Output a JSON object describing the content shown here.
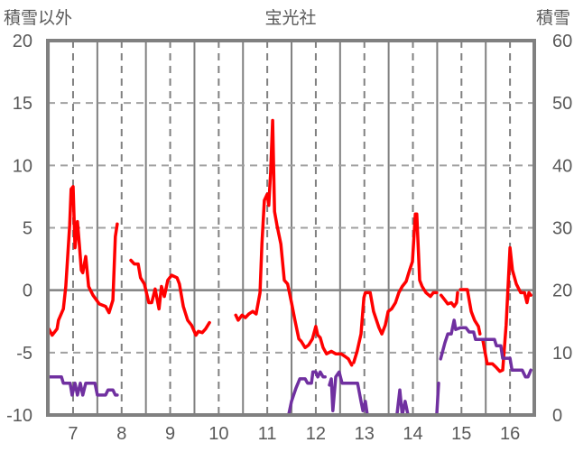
{
  "chart_data": {
    "type": "line",
    "title": "宝光社",
    "ylabel": "積雪以外",
    "y2label": "積雪",
    "xlim": [
      6.48,
      16.5
    ],
    "ylim": [
      -10,
      20
    ],
    "y2lim": [
      0,
      60
    ],
    "xticks": [
      7,
      8,
      9,
      10,
      11,
      12,
      13,
      14,
      15,
      16
    ],
    "yticks": [
      -10,
      -5,
      0,
      5,
      10,
      15,
      20
    ],
    "y2ticks": [
      0,
      10,
      20,
      30,
      40,
      50,
      60
    ],
    "grid": true,
    "legend": "none",
    "colors": {
      "grid": "#808080",
      "text": "#595959"
    },
    "series": [
      {
        "name": "積雪以外",
        "axis": "left",
        "color": "#ff0000",
        "segments": [
          [
            [
              6.5,
              -3.1
            ],
            [
              6.57,
              -3.6
            ],
            [
              6.67,
              -3.1
            ],
            [
              6.7,
              -2.4
            ],
            [
              6.8,
              -1.5
            ],
            [
              6.85,
              0.3
            ],
            [
              6.93,
              5.2
            ],
            [
              6.96,
              8.1
            ],
            [
              7.0,
              8.3
            ],
            [
              7.04,
              3.4
            ],
            [
              7.09,
              5.5
            ],
            [
              7.13,
              3.6
            ],
            [
              7.17,
              1.6
            ],
            [
              7.2,
              1.4
            ],
            [
              7.26,
              2.7
            ],
            [
              7.32,
              0.3
            ],
            [
              7.41,
              -0.4
            ],
            [
              7.54,
              -1.1
            ],
            [
              7.67,
              -1.3
            ],
            [
              7.74,
              -1.8
            ],
            [
              7.82,
              -0.8
            ],
            [
              7.87,
              4.3
            ],
            [
              7.91,
              5.3
            ]
          ],
          [
            [
              8.19,
              2.4
            ],
            [
              8.26,
              2.1
            ],
            [
              8.34,
              2.1
            ],
            [
              8.39,
              1.0
            ],
            [
              8.47,
              0.5
            ],
            [
              8.56,
              -1.0
            ],
            [
              8.62,
              -1.0
            ],
            [
              8.69,
              0.1
            ],
            [
              8.77,
              -1.5
            ],
            [
              8.82,
              0.3
            ],
            [
              8.88,
              -0.5
            ],
            [
              8.95,
              0.8
            ],
            [
              9.03,
              1.2
            ],
            [
              9.14,
              1.0
            ],
            [
              9.19,
              0.5
            ],
            [
              9.27,
              -1.3
            ],
            [
              9.36,
              -2.4
            ],
            [
              9.44,
              -2.8
            ],
            [
              9.53,
              -3.6
            ],
            [
              9.58,
              -3.3
            ],
            [
              9.66,
              -3.4
            ],
            [
              9.73,
              -3.1
            ],
            [
              9.81,
              -2.6
            ]
          ],
          [
            [
              10.35,
              -2.0
            ],
            [
              10.4,
              -2.4
            ],
            [
              10.48,
              -2.0
            ],
            [
              10.55,
              -2.2
            ],
            [
              10.62,
              -1.9
            ],
            [
              10.7,
              -1.7
            ],
            [
              10.77,
              -1.9
            ],
            [
              10.85,
              -0.2
            ],
            [
              10.89,
              3.7
            ],
            [
              10.94,
              7.2
            ],
            [
              11.0,
              7.7
            ],
            [
              11.03,
              6.8
            ],
            [
              11.07,
              9.5
            ],
            [
              11.11,
              13.6
            ],
            [
              11.15,
              6.3
            ],
            [
              11.2,
              5.2
            ],
            [
              11.28,
              3.7
            ],
            [
              11.35,
              0.8
            ],
            [
              11.42,
              0.5
            ],
            [
              11.5,
              -1.0
            ],
            [
              11.57,
              -2.4
            ],
            [
              11.65,
              -3.9
            ],
            [
              11.7,
              -4.1
            ],
            [
              11.78,
              -4.6
            ],
            [
              11.85,
              -4.4
            ],
            [
              11.93,
              -3.9
            ],
            [
              12.0,
              -2.9
            ],
            [
              12.04,
              -3.6
            ],
            [
              12.09,
              -3.8
            ],
            [
              12.15,
              -4.6
            ],
            [
              12.22,
              -5.1
            ],
            [
              12.32,
              -4.9
            ],
            [
              12.41,
              -5.1
            ],
            [
              12.52,
              -5.1
            ],
            [
              12.6,
              -5.3
            ],
            [
              12.67,
              -5.5
            ],
            [
              12.74,
              -6.0
            ]
          ],
          [
            [
              12.78,
              -5.8
            ],
            [
              12.85,
              -4.9
            ],
            [
              12.93,
              -3.5
            ],
            [
              12.99,
              -0.6
            ],
            [
              13.02,
              -0.2
            ],
            [
              13.12,
              -0.2
            ],
            [
              13.19,
              -1.7
            ],
            [
              13.3,
              -3.0
            ],
            [
              13.36,
              -3.5
            ],
            [
              13.43,
              -2.8
            ],
            [
              13.49,
              -1.7
            ],
            [
              13.56,
              -1.5
            ],
            [
              13.64,
              -1.0
            ],
            [
              13.71,
              -0.2
            ],
            [
              13.78,
              0.3
            ],
            [
              13.86,
              0.7
            ],
            [
              13.93,
              1.6
            ],
            [
              13.99,
              2.3
            ],
            [
              14.05,
              6.1
            ],
            [
              14.08,
              6.1
            ],
            [
              14.14,
              0.8
            ],
            [
              14.19,
              0.3
            ],
            [
              14.27,
              -0.2
            ],
            [
              14.36,
              -0.5
            ],
            [
              14.42,
              -0.2
            ],
            [
              14.49,
              -0.2
            ]
          ],
          [
            [
              14.58,
              -0.4
            ],
            [
              14.66,
              -0.8
            ],
            [
              14.72,
              -1.1
            ],
            [
              14.79,
              -1.0
            ],
            [
              14.85,
              -1.3
            ],
            [
              14.9,
              -1.0
            ],
            [
              14.92,
              -0.2
            ]
          ],
          [
            [
              14.98,
              0.05
            ],
            [
              15.12,
              0.05
            ],
            [
              15.2,
              -1.7
            ],
            [
              15.27,
              -2.4
            ],
            [
              15.35,
              -2.9
            ],
            [
              15.38,
              -3.5
            ]
          ],
          [
            [
              15.44,
              -4.0
            ],
            [
              15.53,
              -5.9
            ],
            [
              15.64,
              -5.9
            ],
            [
              15.72,
              -6.2
            ],
            [
              15.79,
              -6.5
            ],
            [
              15.85,
              -6.4
            ],
            [
              15.92,
              -2.8
            ],
            [
              16.0,
              3.4
            ],
            [
              16.05,
              1.6
            ],
            [
              16.13,
              0.5
            ],
            [
              16.22,
              -0.2
            ],
            [
              16.3,
              -0.2
            ],
            [
              16.35,
              -1.0
            ],
            [
              16.39,
              -0.2
            ],
            [
              16.43,
              -0.4
            ]
          ]
        ]
      },
      {
        "name": "積雪",
        "axis": "right",
        "color": "#7030a0",
        "segments": [
          [
            [
              6.5,
              6.1
            ],
            [
              6.76,
              6.1
            ],
            [
              6.8,
              5.1
            ],
            [
              6.94,
              5.1
            ],
            [
              6.98,
              3.2
            ],
            [
              7.04,
              5.1
            ],
            [
              7.09,
              3.2
            ],
            [
              7.15,
              5.1
            ],
            [
              7.2,
              3.2
            ],
            [
              7.26,
              5.1
            ],
            [
              7.45,
              5.1
            ],
            [
              7.5,
              3.2
            ],
            [
              7.67,
              3.2
            ],
            [
              7.72,
              4.0
            ],
            [
              7.82,
              4.0
            ],
            [
              7.87,
              3.2
            ],
            [
              7.91,
              3.2
            ]
          ],
          [
            [
              8.19,
              0
            ],
            [
              9.81,
              0
            ]
          ],
          [
            [
              10.35,
              0
            ],
            [
              11.44,
              0
            ],
            [
              11.5,
              2.2
            ],
            [
              11.59,
              4.3
            ],
            [
              11.67,
              5.8
            ],
            [
              11.78,
              5.8
            ],
            [
              11.83,
              5.1
            ],
            [
              11.91,
              5.1
            ],
            [
              11.94,
              6.9
            ],
            [
              12.0,
              6.9
            ],
            [
              12.04,
              6.1
            ],
            [
              12.09,
              6.9
            ],
            [
              12.15,
              6.1
            ],
            [
              12.19,
              6.1
            ]
          ],
          [
            [
              12.28,
              4.8
            ],
            [
              12.32,
              5.8
            ],
            [
              12.35,
              0.7
            ],
            [
              12.41,
              6.1
            ],
            [
              12.48,
              6.9
            ],
            [
              12.54,
              5.1
            ],
            [
              12.74,
              5.1
            ],
            [
              12.86,
              5.1
            ],
            [
              12.93,
              2.2
            ],
            [
              12.97,
              0.7
            ],
            [
              13.02,
              2.2
            ],
            [
              13.06,
              0
            ],
            [
              13.67,
              0
            ],
            [
              13.73,
              4.0
            ],
            [
              13.78,
              0
            ],
            [
              13.84,
              2.2
            ],
            [
              13.9,
              0
            ],
            [
              14.49,
              0
            ],
            [
              14.53,
              5.1
            ]
          ],
          [
            [
              14.57,
              9.0
            ],
            [
              14.66,
              11.6
            ],
            [
              14.72,
              13.0
            ],
            [
              14.79,
              13.0
            ],
            [
              14.85,
              15.2
            ],
            [
              14.88,
              13.7
            ],
            [
              14.98,
              14.0
            ],
            [
              15.09,
              14.0
            ],
            [
              15.16,
              13.3
            ],
            [
              15.25,
              13.3
            ],
            [
              15.29,
              12.1
            ],
            [
              15.44,
              12.1
            ],
            [
              15.53,
              12.1
            ],
            [
              15.68,
              12.1
            ],
            [
              15.72,
              11.1
            ],
            [
              15.81,
              11.1
            ],
            [
              15.85,
              9.1
            ],
            [
              16.0,
              9.1
            ],
            [
              16.04,
              7.2
            ],
            [
              16.25,
              7.2
            ],
            [
              16.32,
              6.1
            ],
            [
              16.37,
              6.1
            ],
            [
              16.43,
              7.2
            ]
          ]
        ]
      }
    ]
  }
}
